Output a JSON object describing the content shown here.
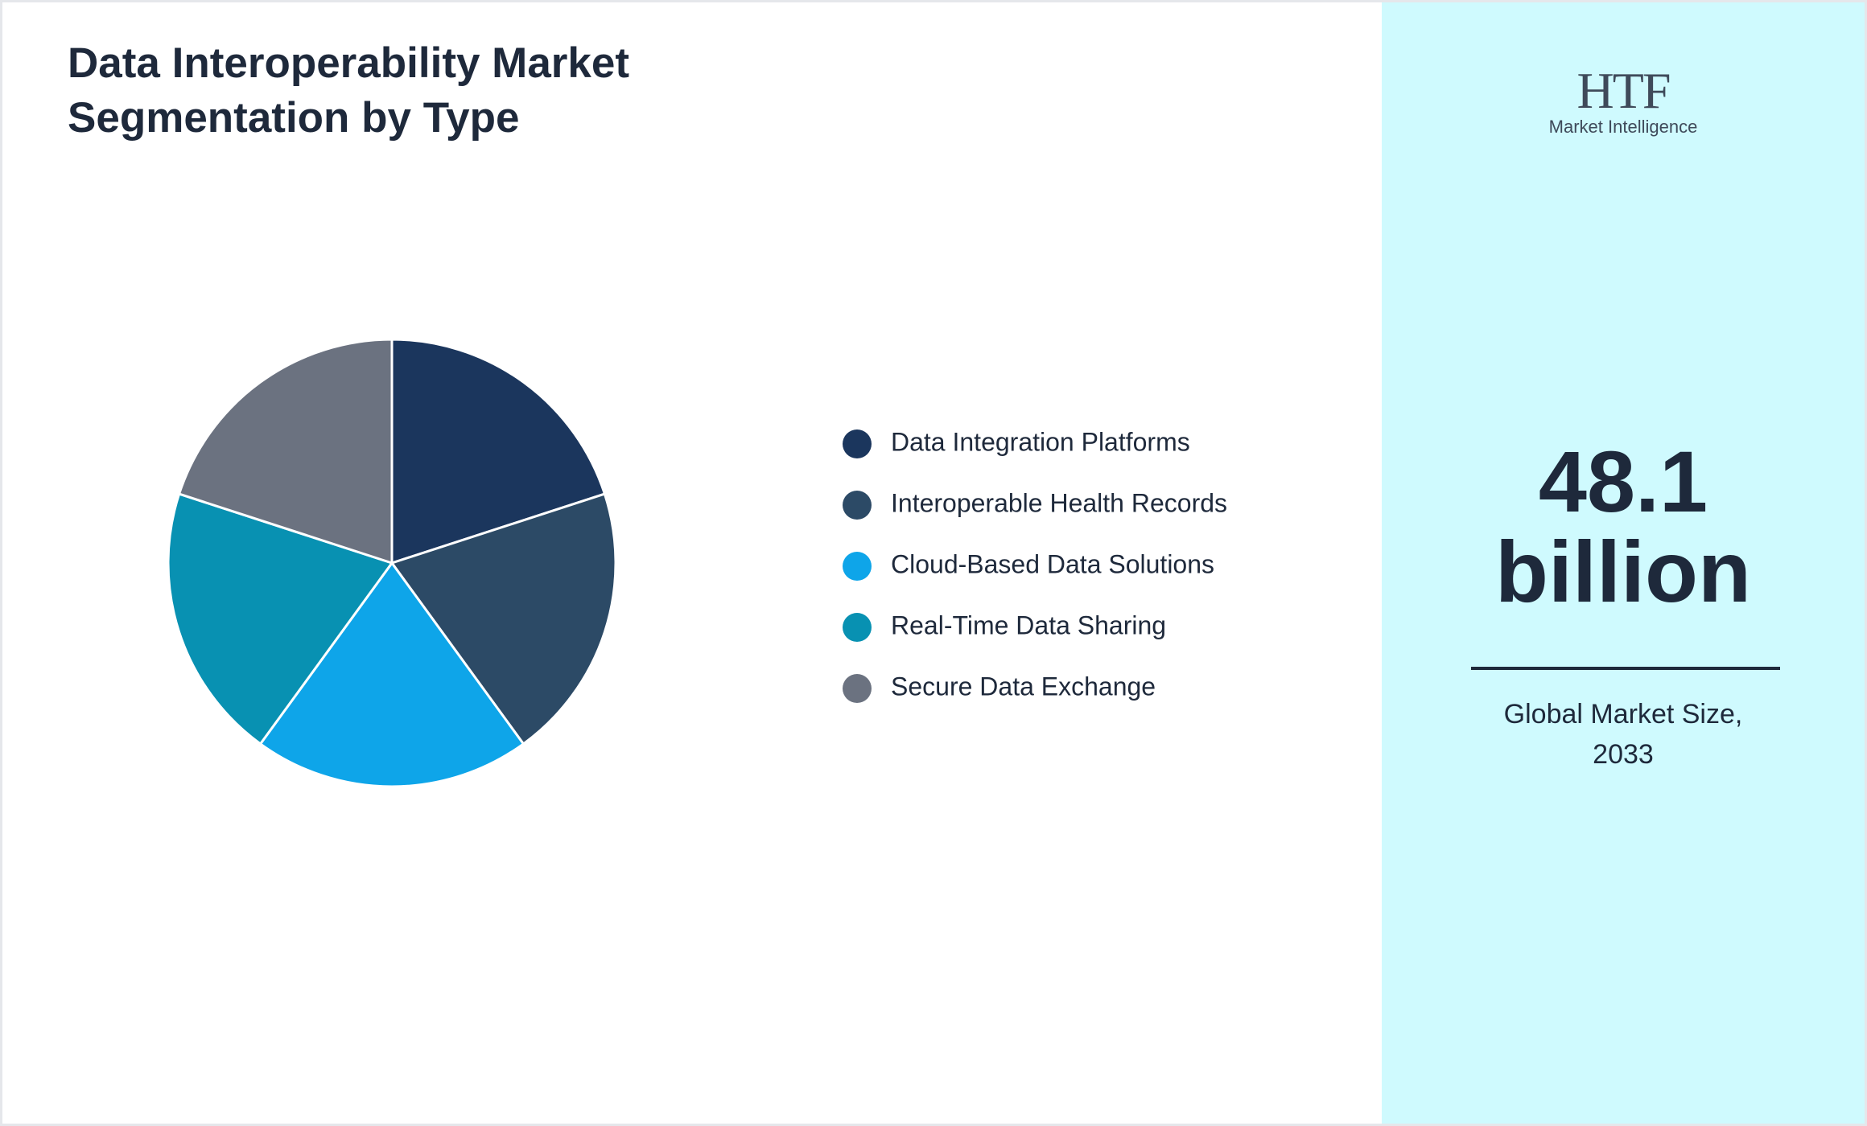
{
  "chart_data": {
    "type": "pie",
    "title": "Data Interoperability Market Segmentation by Type",
    "categories": [
      "Data Integration Platforms",
      "Interoperable Health Records",
      "Cloud-Based Data Solutions",
      "Real-Time Data Sharing",
      "Secure Data Exchange"
    ],
    "values": [
      20,
      20,
      20,
      20,
      20
    ],
    "colors": [
      "#1b365d",
      "#2c4a66",
      "#0ea5e9",
      "#0891b2",
      "#6b7280"
    ]
  },
  "logo": {
    "mark": "HTF",
    "tagline": "Market Intelligence"
  },
  "market_size": {
    "value": "48.1 billion",
    "label": "Global Market Size, 2033"
  }
}
